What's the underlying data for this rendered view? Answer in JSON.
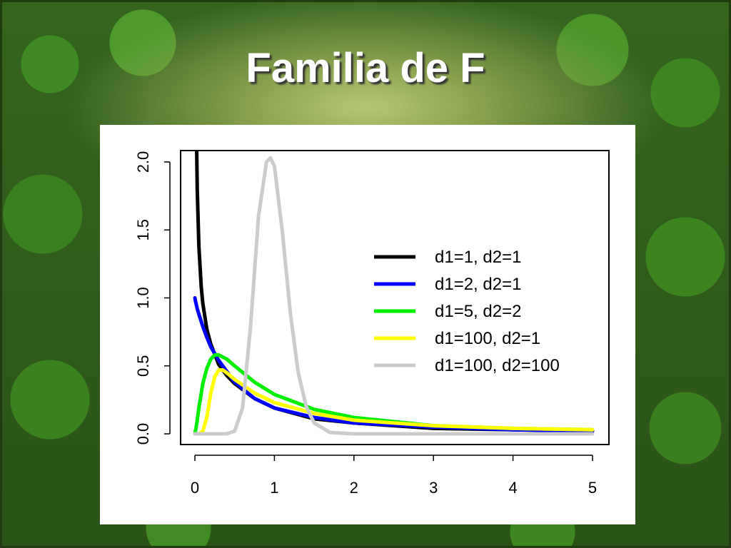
{
  "slide": {
    "title": "Familia de F"
  },
  "colors": {
    "title_text": "#ffffff",
    "plot_background": "#ffffff"
  },
  "chart_data": {
    "type": "line",
    "title": "",
    "xlabel": "",
    "ylabel": "",
    "xlim": [
      0,
      5
    ],
    "ylim": [
      0,
      2
    ],
    "xticks": [
      0,
      1,
      2,
      3,
      4,
      5
    ],
    "xtick_labels": [
      "0",
      "1",
      "2",
      "3",
      "4",
      "5"
    ],
    "yticks": [
      0,
      0.5,
      1,
      1.5,
      2
    ],
    "ytick_labels": [
      "0.0",
      "0.5",
      "1.0",
      "1.5",
      "2.0"
    ],
    "grid": false,
    "legend_position": "right-center",
    "series": [
      {
        "name": "d1=1, d2=1",
        "color": "#000000",
        "x": [
          0.01,
          0.02,
          0.03,
          0.05,
          0.08,
          0.1,
          0.15,
          0.2,
          0.3,
          0.4,
          0.5,
          0.75,
          1.0,
          1.5,
          2.0,
          3.0,
          4.0,
          5.0
        ],
        "y": [
          3.15,
          2.21,
          1.8,
          1.38,
          1.08,
          0.96,
          0.77,
          0.66,
          0.51,
          0.43,
          0.37,
          0.26,
          0.19,
          0.11,
          0.08,
          0.04,
          0.03,
          0.02
        ]
      },
      {
        "name": "d1=2, d2=1",
        "color": "#0000ff",
        "x": [
          0.0,
          0.01,
          0.03,
          0.05,
          0.1,
          0.15,
          0.2,
          0.3,
          0.5,
          0.75,
          1.0,
          1.5,
          2.0,
          3.0,
          4.0,
          5.0
        ],
        "y": [
          1.0,
          0.97,
          0.92,
          0.88,
          0.79,
          0.71,
          0.64,
          0.54,
          0.38,
          0.26,
          0.19,
          0.12,
          0.08,
          0.05,
          0.03,
          0.02
        ]
      },
      {
        "name": "d1=5, d2=2",
        "color": "#00ee00",
        "x": [
          0.0,
          0.02,
          0.05,
          0.1,
          0.15,
          0.2,
          0.25,
          0.3,
          0.4,
          0.5,
          0.75,
          1.0,
          1.5,
          2.0,
          3.0,
          4.0,
          5.0
        ],
        "y": [
          0.0,
          0.06,
          0.19,
          0.37,
          0.48,
          0.55,
          0.58,
          0.58,
          0.55,
          0.5,
          0.38,
          0.29,
          0.18,
          0.12,
          0.06,
          0.04,
          0.03
        ],
        "note_style": "solid"
      },
      {
        "name": "d1=100, d2=1",
        "color": "#ffff00",
        "x": [
          0.0,
          0.05,
          0.1,
          0.15,
          0.2,
          0.25,
          0.3,
          0.35,
          0.4,
          0.5,
          0.75,
          1.0,
          1.5,
          2.0,
          3.0,
          4.0,
          5.0
        ],
        "y": [
          0.0,
          0.0,
          0.02,
          0.12,
          0.3,
          0.42,
          0.47,
          0.47,
          0.45,
          0.4,
          0.3,
          0.23,
          0.15,
          0.1,
          0.06,
          0.04,
          0.03
        ]
      },
      {
        "name": "d1=100, d2=100",
        "color": "#cccccc",
        "x": [
          0.0,
          0.4,
          0.5,
          0.6,
          0.7,
          0.8,
          0.9,
          0.95,
          1.0,
          1.1,
          1.2,
          1.3,
          1.4,
          1.5,
          1.7,
          2.0,
          5.0
        ],
        "y": [
          0.0,
          0.0,
          0.02,
          0.19,
          0.79,
          1.6,
          2.0,
          2.03,
          1.97,
          1.49,
          0.89,
          0.45,
          0.2,
          0.08,
          0.01,
          0.0,
          0.0
        ]
      }
    ]
  }
}
